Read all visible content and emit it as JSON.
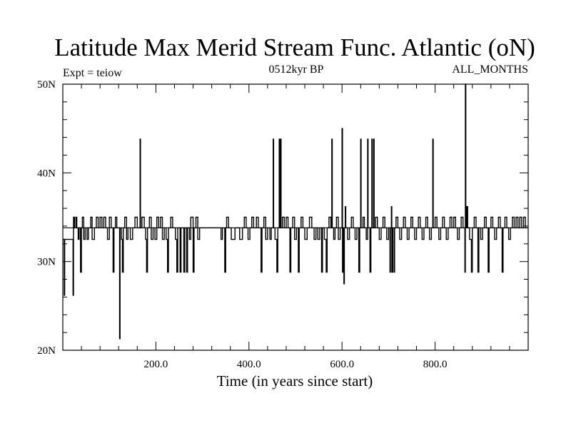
{
  "chart_data": {
    "type": "line",
    "title": "Latitude Max Merid Stream Func. Atlantic (oN)",
    "left_subtitle": "Expt = teiow",
    "center_subtitle": "0512kyr BP",
    "right_subtitle": "ALL_MONTHS",
    "xlabel": "Time (in years since start)",
    "ylabel": "",
    "xlim": [
      0,
      1000
    ],
    "ylim": [
      20,
      50
    ],
    "x_ticks": [
      {
        "value": 200,
        "label": "200.0"
      },
      {
        "value": 400,
        "label": "400.0"
      },
      {
        "value": 600,
        "label": "600.0"
      },
      {
        "value": 800,
        "label": "800.0"
      }
    ],
    "y_ticks": [
      {
        "value": 20,
        "label": "20N"
      },
      {
        "value": 30,
        "label": "30N"
      },
      {
        "value": 40,
        "label": "40N"
      },
      {
        "value": 50,
        "label": "50N"
      }
    ],
    "baseline": 33.8,
    "series": [
      {
        "name": "Latitude Max",
        "points": [
          [
            0,
            32.5
          ],
          [
            2,
            32.5
          ],
          [
            3,
            26.2
          ],
          [
            4,
            32.5
          ],
          [
            8,
            32.5
          ],
          [
            10,
            32.5
          ],
          [
            12,
            32.5
          ],
          [
            14,
            32.5
          ],
          [
            16,
            32.5
          ],
          [
            18,
            32.5
          ],
          [
            20,
            32.5
          ],
          [
            22,
            26.2
          ],
          [
            23,
            35.0
          ],
          [
            25,
            33.8
          ],
          [
            28,
            35.0
          ],
          [
            30,
            33.8
          ],
          [
            33,
            32.5
          ],
          [
            35,
            33.8
          ],
          [
            38,
            28.8
          ],
          [
            40,
            33.8
          ],
          [
            42,
            35.0
          ],
          [
            45,
            32.5
          ],
          [
            48,
            33.8
          ],
          [
            52,
            32.5
          ],
          [
            55,
            33.8
          ],
          [
            60,
            35.0
          ],
          [
            63,
            32.5
          ],
          [
            68,
            33.8
          ],
          [
            72,
            35.0
          ],
          [
            76,
            33.8
          ],
          [
            80,
            35.0
          ],
          [
            84,
            33.8
          ],
          [
            88,
            35.0
          ],
          [
            92,
            33.8
          ],
          [
            96,
            32.5
          ],
          [
            100,
            35.0
          ],
          [
            104,
            33.8
          ],
          [
            108,
            28.8
          ],
          [
            110,
            33.8
          ],
          [
            113,
            35.0
          ],
          [
            116,
            33.8
          ],
          [
            120,
            33.8
          ],
          [
            122,
            21.3
          ],
          [
            123,
            33.8
          ],
          [
            126,
            32.5
          ],
          [
            128,
            28.8
          ],
          [
            130,
            33.8
          ],
          [
            133,
            35.0
          ],
          [
            137,
            32.5
          ],
          [
            140,
            33.8
          ],
          [
            145,
            32.5
          ],
          [
            150,
            33.8
          ],
          [
            155,
            35.0
          ],
          [
            160,
            33.8
          ],
          [
            165,
            33.8
          ],
          [
            166,
            43.8
          ],
          [
            167,
            33.8
          ],
          [
            170,
            35.0
          ],
          [
            175,
            33.8
          ],
          [
            178,
            32.5
          ],
          [
            180,
            28.8
          ],
          [
            182,
            33.8
          ],
          [
            186,
            35.0
          ],
          [
            190,
            32.5
          ],
          [
            194,
            33.8
          ],
          [
            198,
            32.5
          ],
          [
            202,
            35.0
          ],
          [
            206,
            33.8
          ],
          [
            210,
            35.0
          ],
          [
            214,
            32.5
          ],
          [
            218,
            33.8
          ],
          [
            222,
            32.5
          ],
          [
            225,
            28.8
          ],
          [
            227,
            33.8
          ],
          [
            232,
            35.0
          ],
          [
            236,
            33.8
          ],
          [
            242,
            32.5
          ],
          [
            245,
            28.8
          ],
          [
            247,
            33.8
          ],
          [
            252,
            28.8
          ],
          [
            254,
            33.8
          ],
          [
            260,
            28.8
          ],
          [
            262,
            33.8
          ],
          [
            266,
            28.8
          ],
          [
            268,
            33.8
          ],
          [
            272,
            32.5
          ],
          [
            275,
            35.0
          ],
          [
            280,
            28.8
          ],
          [
            282,
            33.8
          ],
          [
            286,
            35.0
          ],
          [
            290,
            32.5
          ],
          [
            294,
            33.8
          ],
          [
            300,
            33.8
          ],
          [
            310,
            33.8
          ],
          [
            320,
            33.8
          ],
          [
            330,
            33.8
          ],
          [
            340,
            32.5
          ],
          [
            343,
            33.8
          ],
          [
            348,
            28.8
          ],
          [
            350,
            33.8
          ],
          [
            352,
            35.0
          ],
          [
            356,
            33.8
          ],
          [
            362,
            32.5
          ],
          [
            370,
            33.8
          ],
          [
            380,
            32.5
          ],
          [
            386,
            33.8
          ],
          [
            390,
            35.0
          ],
          [
            394,
            33.8
          ],
          [
            398,
            32.5
          ],
          [
            402,
            33.8
          ],
          [
            406,
            35.0
          ],
          [
            410,
            33.8
          ],
          [
            416,
            35.0
          ],
          [
            420,
            33.8
          ],
          [
            426,
            28.8
          ],
          [
            428,
            33.8
          ],
          [
            432,
            35.0
          ],
          [
            436,
            32.5
          ],
          [
            440,
            33.8
          ],
          [
            445,
            32.5
          ],
          [
            448,
            33.8
          ],
          [
            452,
            43.8
          ],
          [
            453,
            33.8
          ],
          [
            456,
            32.5
          ],
          [
            460,
            28.8
          ],
          [
            462,
            33.8
          ],
          [
            465,
            43.8
          ],
          [
            466,
            33.8
          ],
          [
            468,
            43.8
          ],
          [
            469,
            33.8
          ],
          [
            472,
            35.0
          ],
          [
            476,
            33.8
          ],
          [
            480,
            35.0
          ],
          [
            484,
            33.8
          ],
          [
            488,
            28.8
          ],
          [
            490,
            33.8
          ],
          [
            494,
            35.0
          ],
          [
            498,
            32.5
          ],
          [
            502,
            33.8
          ],
          [
            506,
            28.8
          ],
          [
            508,
            33.8
          ],
          [
            512,
            35.0
          ],
          [
            516,
            33.8
          ],
          [
            520,
            32.5
          ],
          [
            525,
            33.8
          ],
          [
            530,
            35.0
          ],
          [
            535,
            33.8
          ],
          [
            540,
            32.5
          ],
          [
            544,
            33.8
          ],
          [
            548,
            32.5
          ],
          [
            552,
            33.8
          ],
          [
            556,
            28.8
          ],
          [
            558,
            33.8
          ],
          [
            562,
            32.5
          ],
          [
            566,
            28.8
          ],
          [
            568,
            33.8
          ],
          [
            572,
            35.0
          ],
          [
            576,
            33.8
          ],
          [
            578,
            43.8
          ],
          [
            579,
            33.8
          ],
          [
            582,
            32.5
          ],
          [
            585,
            33.8
          ],
          [
            588,
            35.0
          ],
          [
            592,
            32.5
          ],
          [
            596,
            33.8
          ],
          [
            600,
            45.0
          ],
          [
            601,
            28.8
          ],
          [
            602,
            33.8
          ],
          [
            604,
            27.5
          ],
          [
            605,
            33.8
          ],
          [
            607,
            36.2
          ],
          [
            608,
            33.8
          ],
          [
            612,
            32.5
          ],
          [
            616,
            33.8
          ],
          [
            620,
            35.0
          ],
          [
            624,
            33.8
          ],
          [
            628,
            32.5
          ],
          [
            632,
            33.8
          ],
          [
            636,
            28.8
          ],
          [
            638,
            33.8
          ],
          [
            640,
            43.8
          ],
          [
            641,
            33.8
          ],
          [
            645,
            35.0
          ],
          [
            648,
            33.8
          ],
          [
            652,
            32.5
          ],
          [
            655,
            43.8
          ],
          [
            656,
            33.8
          ],
          [
            660,
            28.8
          ],
          [
            662,
            33.8
          ],
          [
            664,
            43.8
          ],
          [
            665,
            33.8
          ],
          [
            668,
            43.8
          ],
          [
            669,
            33.8
          ],
          [
            672,
            35.0
          ],
          [
            676,
            33.8
          ],
          [
            680,
            32.5
          ],
          [
            684,
            33.8
          ],
          [
            688,
            35.0
          ],
          [
            692,
            33.8
          ],
          [
            696,
            32.5
          ],
          [
            700,
            33.8
          ],
          [
            703,
            28.8
          ],
          [
            704,
            33.8
          ],
          [
            706,
            36.2
          ],
          [
            707,
            28.8
          ],
          [
            709,
            33.8
          ],
          [
            712,
            28.8
          ],
          [
            713,
            33.8
          ],
          [
            716,
            35.0
          ],
          [
            720,
            33.8
          ],
          [
            724,
            32.5
          ],
          [
            728,
            33.8
          ],
          [
            732,
            35.0
          ],
          [
            736,
            33.8
          ],
          [
            740,
            32.5
          ],
          [
            744,
            33.8
          ],
          [
            748,
            35.0
          ],
          [
            752,
            33.8
          ],
          [
            756,
            32.5
          ],
          [
            760,
            33.8
          ],
          [
            764,
            35.0
          ],
          [
            768,
            33.8
          ],
          [
            772,
            32.5
          ],
          [
            776,
            33.8
          ],
          [
            780,
            35.0
          ],
          [
            784,
            33.8
          ],
          [
            788,
            32.5
          ],
          [
            792,
            33.8
          ],
          [
            795,
            43.8
          ],
          [
            796,
            33.8
          ],
          [
            800,
            35.0
          ],
          [
            804,
            33.8
          ],
          [
            808,
            32.5
          ],
          [
            812,
            33.8
          ],
          [
            816,
            35.0
          ],
          [
            820,
            33.8
          ],
          [
            824,
            32.5
          ],
          [
            828,
            33.8
          ],
          [
            832,
            35.0
          ],
          [
            836,
            33.8
          ],
          [
            840,
            35.0
          ],
          [
            844,
            33.8
          ],
          [
            848,
            32.5
          ],
          [
            852,
            33.8
          ],
          [
            856,
            35.0
          ],
          [
            860,
            33.8
          ],
          [
            864,
            28.8
          ],
          [
            865,
            50.0
          ],
          [
            866,
            33.8
          ],
          [
            868,
            36.2
          ],
          [
            870,
            33.8
          ],
          [
            874,
            32.5
          ],
          [
            878,
            28.8
          ],
          [
            880,
            33.8
          ],
          [
            884,
            35.0
          ],
          [
            888,
            33.8
          ],
          [
            892,
            28.8
          ],
          [
            894,
            33.8
          ],
          [
            898,
            32.5
          ],
          [
            902,
            33.8
          ],
          [
            906,
            35.0
          ],
          [
            910,
            33.8
          ],
          [
            914,
            28.8
          ],
          [
            916,
            33.8
          ],
          [
            920,
            35.0
          ],
          [
            924,
            33.8
          ],
          [
            928,
            32.5
          ],
          [
            932,
            33.8
          ],
          [
            936,
            35.0
          ],
          [
            940,
            33.8
          ],
          [
            944,
            28.8
          ],
          [
            946,
            33.8
          ],
          [
            950,
            35.0
          ],
          [
            954,
            33.8
          ],
          [
            958,
            32.5
          ],
          [
            962,
            33.8
          ],
          [
            966,
            35.0
          ],
          [
            970,
            33.8
          ],
          [
            974,
            35.0
          ],
          [
            978,
            33.8
          ],
          [
            982,
            35.0
          ],
          [
            986,
            33.8
          ],
          [
            990,
            35.0
          ],
          [
            994,
            33.8
          ],
          [
            1000,
            33.8
          ]
        ]
      }
    ]
  }
}
